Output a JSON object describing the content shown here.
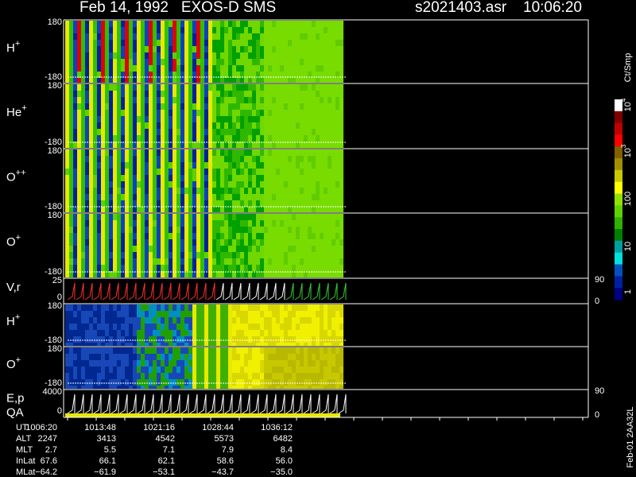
{
  "header": {
    "title": "Feb 14, 1992   EXOS-D SMS",
    "file": "s2021403.asr",
    "time": "10:06:20"
  },
  "panels": [
    {
      "label": "H",
      "sup": "+",
      "ticks": [
        "180",
        "-180"
      ]
    },
    {
      "label": "He",
      "sup": "+",
      "ticks": [
        "180",
        "-180"
      ]
    },
    {
      "label": "O",
      "sup": "++",
      "ticks": [
        "180",
        "-180"
      ]
    },
    {
      "label": "O",
      "sup": "+",
      "ticks": [
        "180",
        "-180"
      ]
    },
    {
      "label": "V,r",
      "ticks": [
        "25",
        "0"
      ],
      "right_ticks": [
        "90",
        "0"
      ]
    },
    {
      "label": "H",
      "sup": "+",
      "ticks": [
        "180",
        "-180"
      ]
    },
    {
      "label": "O",
      "sup": "+",
      "ticks": [
        "180",
        "-180"
      ]
    },
    {
      "label": "E,p",
      "label2": "QA",
      "ticks": [
        "4000",
        "0"
      ],
      "right_ticks": [
        "90",
        "0"
      ]
    }
  ],
  "colorbar": {
    "unit": "Ct/Smp",
    "ticks": [
      {
        "base": "10",
        "exp": "4"
      },
      {
        "base": "10",
        "exp": "3"
      },
      {
        "base": "100"
      },
      {
        "base": "10"
      },
      {
        "base": "1"
      }
    ]
  },
  "table": {
    "rows": [
      {
        "label": "UT",
        "cells": [
          "1006:20",
          "1013:48",
          "1021:16",
          "1028:44",
          "1036:12"
        ]
      },
      {
        "label": "ALT",
        "cells": [
          "2247",
          "3413",
          "4542",
          "5573",
          "6482"
        ]
      },
      {
        "label": "MLT",
        "cells": [
          "2.7",
          "5.5",
          "7.1",
          "7.9",
          "8.4"
        ]
      },
      {
        "label": "InLat",
        "cells": [
          "67.6",
          "66.1",
          "62.1",
          "58.6",
          "56.0"
        ]
      },
      {
        "label": "MLat",
        "cells": [
          "−64.2",
          "−61.9",
          "−53.1",
          "−43.7",
          "−35.0"
        ]
      }
    ]
  },
  "footer_id": "Feb-01 2AA32L"
}
